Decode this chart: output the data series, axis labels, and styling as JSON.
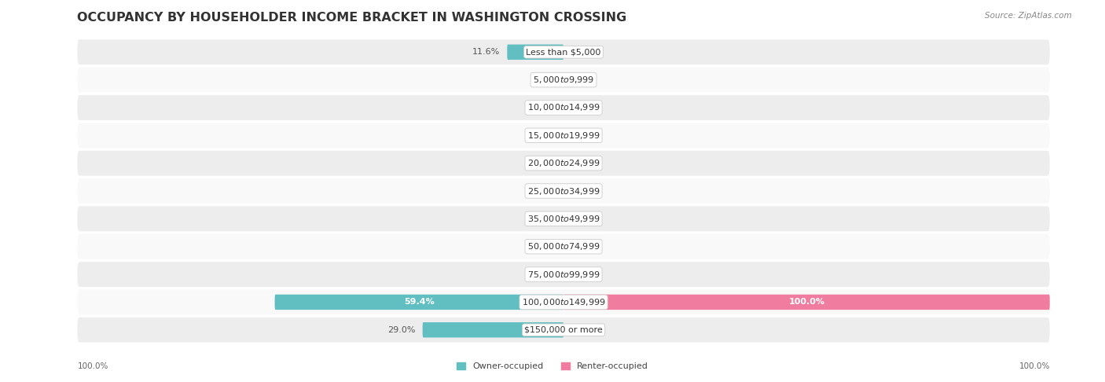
{
  "title": "OCCUPANCY BY HOUSEHOLDER INCOME BRACKET IN WASHINGTON CROSSING",
  "source": "Source: ZipAtlas.com",
  "categories": [
    "Less than $5,000",
    "$5,000 to $9,999",
    "$10,000 to $14,999",
    "$15,000 to $19,999",
    "$20,000 to $24,999",
    "$25,000 to $34,999",
    "$35,000 to $49,999",
    "$50,000 to $74,999",
    "$75,000 to $99,999",
    "$100,000 to $149,999",
    "$150,000 or more"
  ],
  "owner_pct": [
    11.6,
    0.0,
    0.0,
    0.0,
    0.0,
    0.0,
    0.0,
    0.0,
    0.0,
    59.4,
    29.0
  ],
  "renter_pct": [
    0.0,
    0.0,
    0.0,
    0.0,
    0.0,
    0.0,
    0.0,
    0.0,
    0.0,
    100.0,
    0.0
  ],
  "owner_color": "#62bfc1",
  "renter_color": "#f07ca0",
  "bg_stripe": "#ededee",
  "bg_white": "#f9f9f9",
  "bg_figure": "#ffffff",
  "title_fontsize": 11.5,
  "label_fontsize": 8,
  "cat_fontsize": 8,
  "source_fontsize": 7.5,
  "legend_fontsize": 8,
  "axis_label_fontsize": 7.5
}
